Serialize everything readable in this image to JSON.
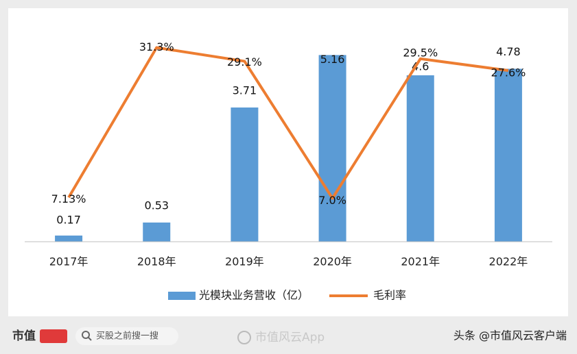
{
  "chart_data": {
    "type": "bar-line",
    "categories": [
      "2017年",
      "2018年",
      "2019年",
      "2020年",
      "2021年",
      "2022年"
    ],
    "series": [
      {
        "name": "光模块业务营收（亿）",
        "type": "bar",
        "color": "#5b9bd5",
        "values": [
          0.17,
          0.53,
          3.71,
          5.16,
          4.6,
          4.78
        ]
      },
      {
        "name": "毛利率",
        "type": "line",
        "axis": "y2",
        "color": "#ed7d31",
        "values": [
          7.13,
          31.3,
          29.1,
          7.0,
          29.5,
          27.6
        ],
        "value_labels": [
          "7.13%",
          "31.3%",
          "29.1%",
          "7.0%",
          "29.5%",
          "27.6%"
        ]
      }
    ],
    "ylim": [
      0,
      6
    ],
    "y2lim": [
      0,
      35
    ],
    "legend": "bottom"
  },
  "footer": {
    "logo": "市值",
    "search": "买股之前搜一搜",
    "app": "市值风云App",
    "source": "头条 @市值风云客户端"
  }
}
